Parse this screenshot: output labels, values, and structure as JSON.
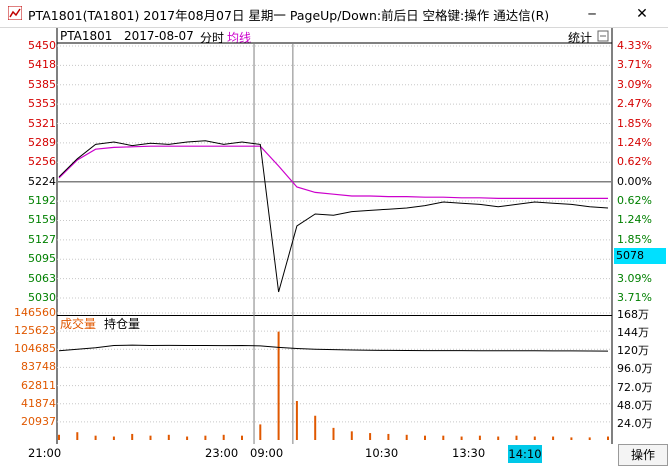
{
  "window": {
    "title": "PTA1801(TA1801) 2017年08月07日 星期一 PageUp/Down:前后日 空格键:操作 通达信(R)",
    "minimize_label": "─",
    "close_label": "✕"
  },
  "header": {
    "symbol": "PTA1801",
    "date": "2017-08-07",
    "mode": "分时",
    "avg_label": "均线",
    "stats_button": "统计",
    "colors": {
      "avg": "#cc00cc",
      "price": "#000000"
    }
  },
  "price_axis": {
    "left_labels": [
      "5450",
      "5418",
      "5385",
      "5353",
      "5321",
      "5289",
      "5256",
      "5224",
      "5192",
      "5159",
      "5127",
      "5095",
      "5063",
      "5030"
    ],
    "right_labels": [
      "4.33%",
      "3.71%",
      "3.09%",
      "2.47%",
      "1.85%",
      "1.24%",
      "0.62%",
      "0.00%",
      "0.62%",
      "1.24%",
      "1.85%",
      "2.47%",
      "3.09%",
      "3.71%"
    ],
    "current_price_tag": "5078",
    "colors": {
      "up": "#d40000",
      "down": "#008000",
      "flat": "#000000"
    }
  },
  "volume_panel": {
    "volume_label": "成交量",
    "open_interest_label": "持仓量",
    "left_labels": [
      "146560",
      "125623",
      "104685",
      "83748",
      "62811",
      "41874",
      "20937"
    ],
    "right_labels": [
      "168万",
      "144万",
      "120万",
      "96.0万",
      "72.0万",
      "48.0万",
      "24.0万"
    ],
    "colors": {
      "volume": "#e05800",
      "open_interest": "#000000"
    }
  },
  "bottom_bar": {
    "times": [
      "21:00",
      "23:00",
      "09:00",
      "10:30",
      "13:30"
    ],
    "cursor_time": "14:10",
    "operation_button": "操作"
  },
  "chart_data": {
    "type": "line",
    "x": [
      "21:00",
      "21:15",
      "21:30",
      "21:45",
      "22:00",
      "22:15",
      "22:30",
      "22:45",
      "23:00",
      "23:15",
      "23:30",
      "09:00",
      "09:05",
      "09:15",
      "09:30",
      "09:45",
      "10:00",
      "10:15",
      "10:30",
      "10:45",
      "11:00",
      "11:15",
      "11:30",
      "13:30",
      "13:45",
      "14:00",
      "14:10",
      "14:20",
      "14:30",
      "14:45",
      "15:00"
    ],
    "series": [
      {
        "name": "价格",
        "values": [
          5232,
          5262,
          5286,
          5290,
          5284,
          5288,
          5286,
          5290,
          5292,
          5286,
          5290,
          5286,
          5040,
          5150,
          5170,
          5168,
          5174,
          5176,
          5178,
          5180,
          5184,
          5190,
          5188,
          5186,
          5182,
          5186,
          5190,
          5188,
          5186,
          5182,
          5180
        ]
      },
      {
        "name": "均线",
        "values": [
          5230,
          5260,
          5278,
          5281,
          5282,
          5283,
          5283,
          5283,
          5283,
          5283,
          5283,
          5283,
          5250,
          5215,
          5206,
          5203,
          5200,
          5200,
          5199,
          5199,
          5198,
          5198,
          5197,
          5197,
          5196,
          5196,
          5196,
          5196,
          5196,
          5196,
          5196
        ]
      }
    ],
    "ylim": [
      5030,
      5450
    ],
    "reference_price": 5224,
    "volume": [
      6000,
      9000,
      5000,
      4000,
      7000,
      5000,
      6000,
      4000,
      5000,
      6000,
      5000,
      18000,
      125000,
      45000,
      28000,
      14000,
      10000,
      8000,
      7000,
      6000,
      5000,
      5000,
      4000,
      5000,
      4000,
      5000,
      4000,
      4000,
      3000,
      3000,
      4000
    ],
    "volume_ylim": [
      0,
      146560
    ],
    "open_interest": [
      1180000,
      1200000,
      1220000,
      1250000,
      1255000,
      1250000,
      1252000,
      1250000,
      1250000,
      1248000,
      1250000,
      1245000,
      1225000,
      1210000,
      1200000,
      1195000,
      1190000,
      1188000,
      1185000,
      1184000,
      1183000,
      1182000,
      1182000,
      1181000,
      1180000,
      1180000,
      1180000,
      1179000,
      1179000,
      1178000,
      1176000
    ],
    "open_interest_ylim": [
      0,
      1680000
    ]
  }
}
